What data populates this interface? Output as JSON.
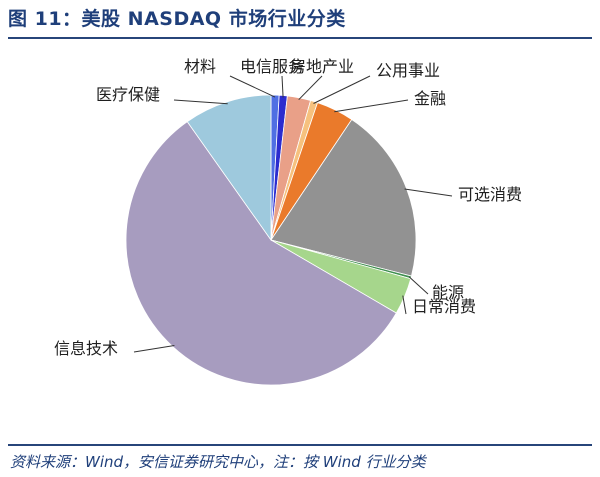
{
  "figure": {
    "title": "图 11：美股 NASDAQ 市场行业分类",
    "source": "资料来源：Wind，安信证券研究中心，注：按 Wind 行业分类"
  },
  "chart_data": {
    "type": "pie",
    "start_angle_deg": 0,
    "direction": "clockwise",
    "slices": [
      {
        "label": "材料",
        "value": 0.9,
        "color": "#4f6fe3"
      },
      {
        "label": "电信服务",
        "value": 0.9,
        "color": "#2c2ccf"
      },
      {
        "label": "房地产业",
        "value": 2.6,
        "color": "#e9a088"
      },
      {
        "label": "公用事业",
        "value": 0.8,
        "color": "#f6c17e"
      },
      {
        "label": "金融",
        "value": 4.2,
        "color": "#ea7a2b"
      },
      {
        "label": "可选消费",
        "value": 19.6,
        "color": "#929292"
      },
      {
        "label": "能源",
        "value": 0.3,
        "color": "#3f8f4f"
      },
      {
        "label": "日常消费",
        "value": 4.1,
        "color": "#a6d68c"
      },
      {
        "label": "信息技术",
        "value": 56.8,
        "color": "#a79cbf"
      },
      {
        "label": "医疗保健",
        "value": 9.8,
        "color": "#9ec9dd"
      }
    ]
  }
}
